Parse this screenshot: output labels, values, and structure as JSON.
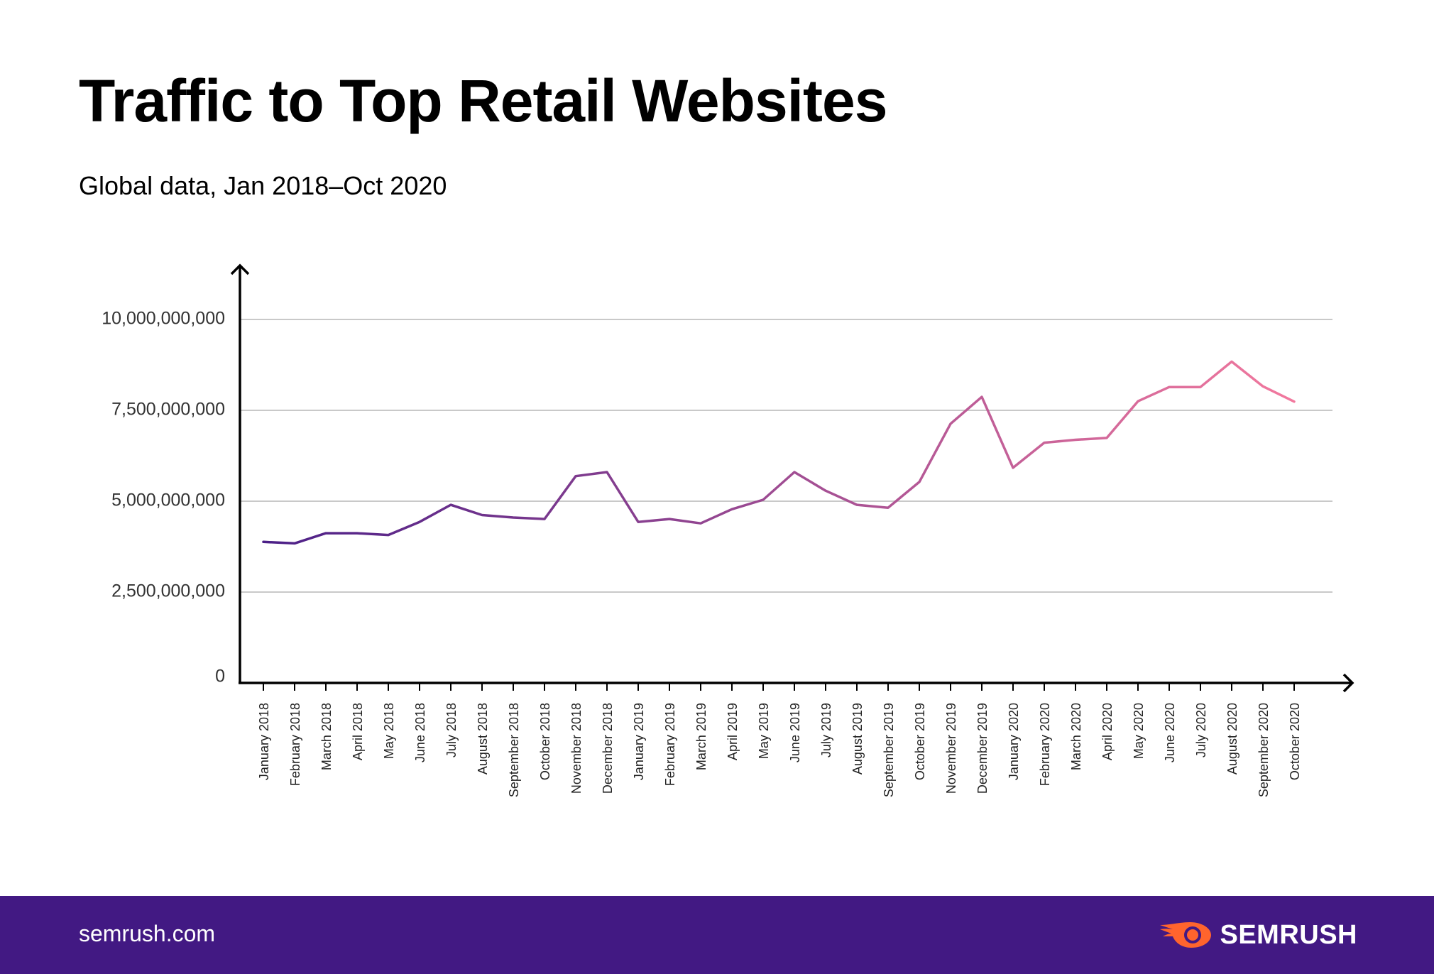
{
  "header": {
    "title": "Traffic to Top Retail Websites",
    "subtitle": "Global data, Jan 2018–Oct 2020"
  },
  "footer": {
    "url": "semrush.com",
    "brand": "SEMRUSH",
    "brand_icon": "semrush-fire-logo-icon",
    "background_color": "#421983",
    "brand_accent_color": "#FF642D"
  },
  "chart_data": {
    "type": "line",
    "title": "Traffic to Top Retail Websites",
    "subtitle": "Global data, Jan 2018–Oct 2020",
    "xlabel": "",
    "ylabel": "",
    "ylim": [
      0,
      11000000000
    ],
    "yticks": [
      0,
      2500000000,
      5000000000,
      7500000000,
      10000000000
    ],
    "ytick_labels": [
      "0",
      "2,500,000,000",
      "5,000,000,000",
      "7,500,000,000",
      "10,000,000,000"
    ],
    "grid": true,
    "legend": "none",
    "line_gradient": [
      "#4B1F87",
      "#F2799E"
    ],
    "categories": [
      "January 2018",
      "February 2018",
      "March 2018",
      "April 2018",
      "May 2018",
      "June 2018",
      "July 2018",
      "August 2018",
      "September 2018",
      "October 2018",
      "November 2018",
      "December 2018",
      "January 2019",
      "February 2019",
      "March 2019",
      "April 2019",
      "May 2019",
      "June 2019",
      "July 2019",
      "August 2019",
      "September 2019",
      "October 2019",
      "November 2019",
      "December 2019",
      "January 2020",
      "February 2020",
      "March 2020",
      "April 2020",
      "May 2020",
      "June 2020",
      "July 2020",
      "August 2020",
      "September 2020",
      "October 2020"
    ],
    "series": [
      {
        "values": [
          3880000000,
          3840000000,
          4120000000,
          4120000000,
          4070000000,
          4430000000,
          4900000000,
          4620000000,
          4550000000,
          4510000000,
          5690000000,
          5800000000,
          4430000000,
          4510000000,
          4390000000,
          4780000000,
          5040000000,
          5800000000,
          5290000000,
          4900000000,
          4820000000,
          5530000000,
          7130000000,
          7870000000,
          5920000000,
          6610000000,
          6690000000,
          6740000000,
          7750000000,
          8140000000,
          8140000000,
          8840000000,
          8160000000,
          7740000000
        ]
      }
    ]
  }
}
